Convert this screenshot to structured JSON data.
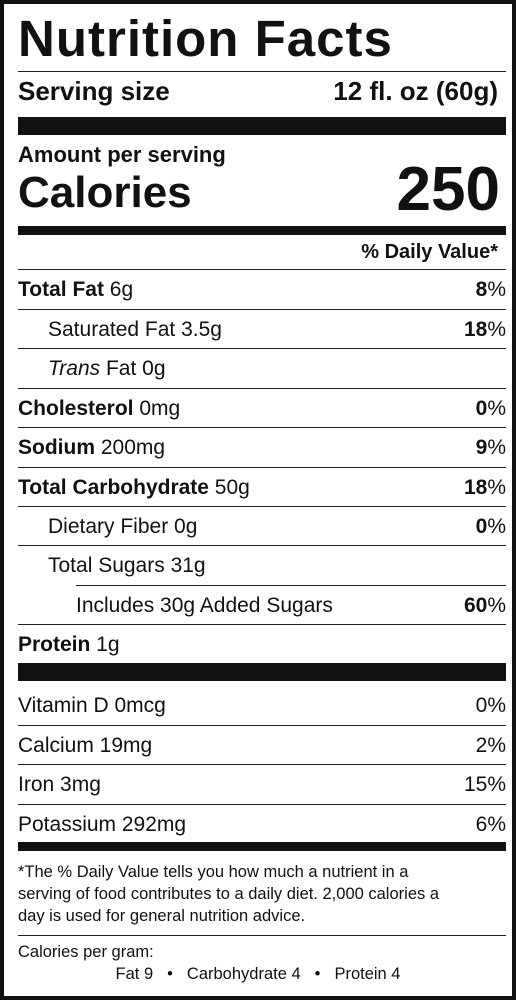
{
  "title": "Nutrition Facts",
  "serving": {
    "label": "Serving size",
    "value": "12 fl. oz (60g)"
  },
  "amount_per_serving": "Amount per serving",
  "calories": {
    "label": "Calories",
    "value": "250"
  },
  "dv_header": "% Daily Value*",
  "nutrients": [
    {
      "name": "Total Fat",
      "amount": " 6g",
      "dv": "8",
      "dv_unit": "%"
    },
    {
      "name": "Saturated Fat 3.5g",
      "dv": "18",
      "dv_unit": "%"
    },
    {
      "name_italic": "Trans",
      "name_rest": " Fat 0g"
    },
    {
      "name": "Cholesterol",
      "amount": " 0mg",
      "dv": "0",
      "dv_unit": "%"
    },
    {
      "name": "Sodium",
      "amount": " 200mg",
      "dv": "9",
      "dv_unit": "%"
    },
    {
      "name": "Total Carbohydrate",
      "amount": " 50g",
      "dv": "18",
      "dv_unit": "%"
    },
    {
      "name": "Dietary Fiber 0g",
      "dv": "0",
      "dv_unit": "%"
    },
    {
      "name": "Total Sugars 31g"
    },
    {
      "name": "Includes 30g Added Sugars",
      "dv": "60",
      "dv_unit": "%"
    },
    {
      "name": "Protein",
      "amount": " 1g"
    }
  ],
  "vitamins": [
    {
      "name": "Vitamin D 0mcg",
      "dv": "0%"
    },
    {
      "name": "Calcium 19mg",
      "dv": "2%"
    },
    {
      "name": "Iron 3mg",
      "dv": "15%"
    },
    {
      "name": "Potassium 292mg",
      "dv": "6%"
    }
  ],
  "footnote": {
    "line1": "*The % Daily Value tells you how much a nutrient in a",
    "line2": "serving of food contributes to a daily diet. 2,000 calories a",
    "line3": "day is used for general nutrition advice."
  },
  "calories_per_gram": {
    "label": "Calories per gram:",
    "fat": "Fat 9",
    "carb": "Carbohydrate 4",
    "protein": "Protein 4",
    "separator": "•"
  }
}
